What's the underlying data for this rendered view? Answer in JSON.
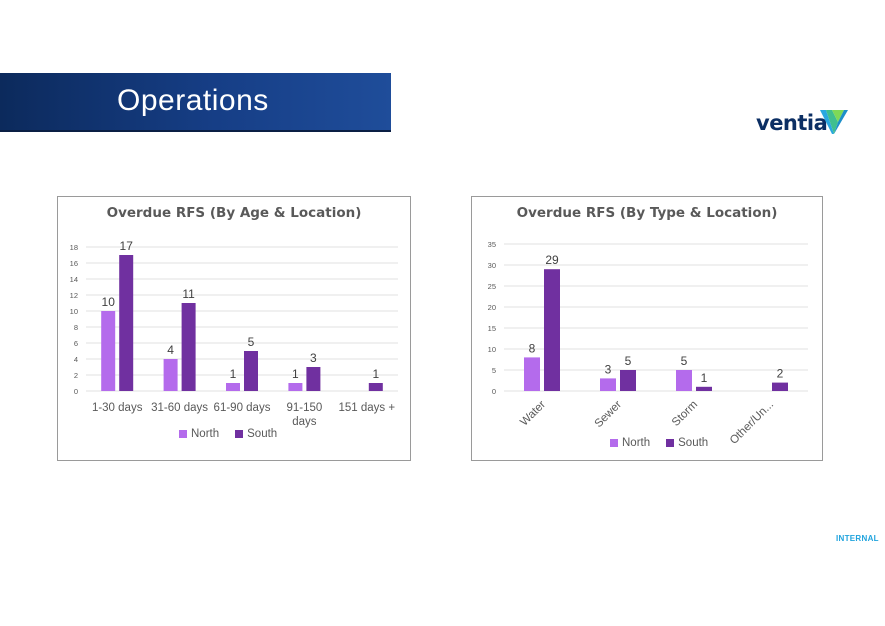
{
  "header": {
    "title": "Operations"
  },
  "logo": {
    "text": "ventia",
    "icon": "ventia-leaf-logo"
  },
  "footer": {
    "classification": "INTERNAL"
  },
  "colors": {
    "north": "#b46bec",
    "south": "#7030a0",
    "banner": "#163e86"
  },
  "charts": [
    {
      "title": "Overdue RFS (By Age & Location)",
      "legend": [
        "North",
        "South"
      ]
    },
    {
      "title": "Overdue RFS (By Type & Location)",
      "legend": [
        "North",
        "South"
      ]
    }
  ],
  "chart_data": [
    {
      "type": "bar",
      "title": "Overdue RFS (By Age & Location)",
      "categories": [
        "1-30 days",
        "31-60 days",
        "61-90 days",
        "91-150 days",
        "151 days +"
      ],
      "series": [
        {
          "name": "North",
          "values": [
            10,
            4,
            1,
            1,
            null
          ]
        },
        {
          "name": "South",
          "values": [
            17,
            11,
            5,
            3,
            1
          ]
        }
      ],
      "ylim": [
        0,
        18
      ],
      "yticks": [
        0,
        2,
        4,
        6,
        8,
        10,
        12,
        14,
        16,
        18
      ],
      "grid": true,
      "legend_position": "bottom"
    },
    {
      "type": "bar",
      "title": "Overdue RFS (By Type & Location)",
      "categories": [
        "Water",
        "Sewer",
        "Storm",
        "Other/Un..."
      ],
      "series": [
        {
          "name": "North",
          "values": [
            8,
            3,
            5,
            null
          ]
        },
        {
          "name": "South",
          "values": [
            29,
            5,
            1,
            2
          ]
        }
      ],
      "ylim": [
        0,
        35
      ],
      "yticks": [
        0,
        5,
        10,
        15,
        20,
        25,
        30,
        35
      ],
      "grid": true,
      "legend_position": "bottom"
    }
  ]
}
